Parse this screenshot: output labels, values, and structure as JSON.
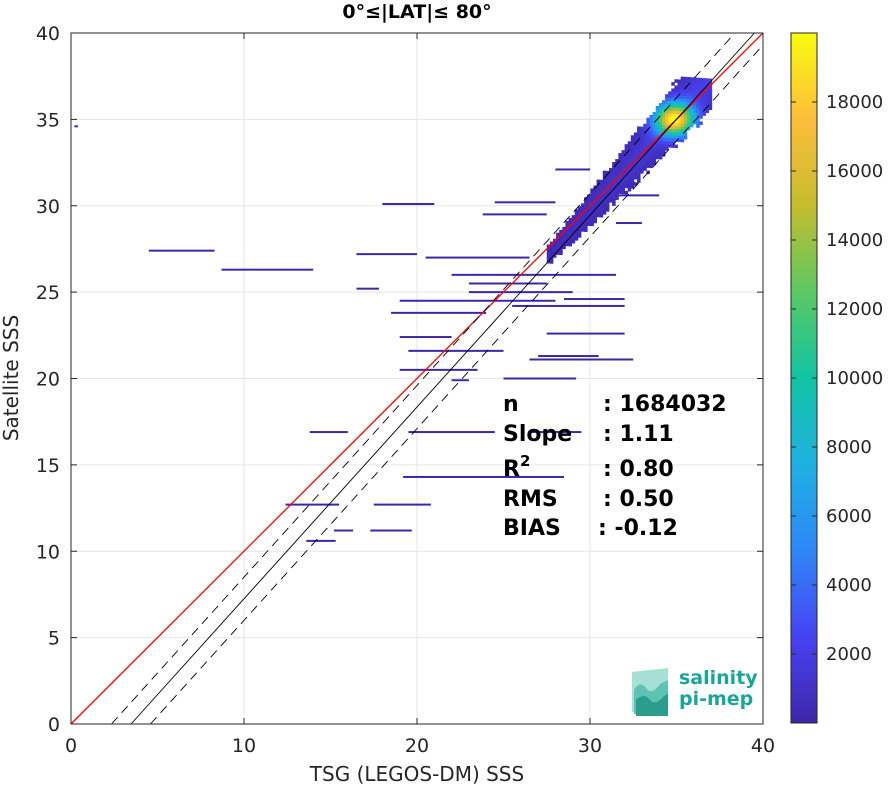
{
  "chart_data": {
    "type": "heatmap",
    "title": "0°≤|LAT|≤ 80°",
    "xlabel": "TSG (LEGOS-DM) SSS",
    "ylabel": "Satellite SSS",
    "xlim": [
      0,
      40
    ],
    "ylim": [
      0,
      40
    ],
    "x_ticks": [
      "0",
      "10",
      "20",
      "30",
      "40"
    ],
    "y_ticks": [
      "0",
      "5",
      "10",
      "15",
      "20",
      "25",
      "30",
      "35",
      "40"
    ],
    "grid": true,
    "colorbar": {
      "range": [
        0,
        20000
      ],
      "ticks": [
        "2000",
        "4000",
        "6000",
        "8000",
        "10000",
        "12000",
        "14000",
        "16000",
        "18000"
      ],
      "colormap": [
        "#3e26a8",
        "#4743f2",
        "#2e87f7",
        "#1fb0e1",
        "#11c3a2",
        "#5cc863",
        "#c5bd2e",
        "#fdbd3c",
        "#f9fb0e"
      ]
    },
    "lines": [
      {
        "name": "identity",
        "slope": 1.0,
        "intercept": 0.0,
        "color": "#ff0000",
        "style": "solid"
      },
      {
        "name": "fit",
        "slope": 1.11,
        "intercept": -3.85,
        "color": "#000000",
        "style": "solid"
      },
      {
        "name": "fit-plus",
        "slope": 1.11,
        "intercept": -2.6,
        "color": "#000000",
        "style": "dashed"
      },
      {
        "name": "fit-minus",
        "slope": 1.11,
        "intercept": -5.1,
        "color": "#000000",
        "style": "dashed"
      }
    ],
    "stats": [
      {
        "label": "n",
        "value": ": 1684032"
      },
      {
        "label": "Slope",
        "value": ": 1.11"
      },
      {
        "label": "R",
        "sup": "2",
        "value": ": 0.80"
      },
      {
        "label": "RMS",
        "value": ": 0.50"
      },
      {
        "label": "BIAS",
        "value": ": -0.12"
      }
    ],
    "horizontal_streaks": [
      {
        "y": 34.6,
        "x0": 0.2,
        "x1": 0.4
      },
      {
        "y": 30.1,
        "x0": 18.0,
        "x1": 21.0
      },
      {
        "y": 30.2,
        "x0": 24.5,
        "x1": 28.0
      },
      {
        "y": 29.5,
        "x0": 23.8,
        "x1": 27.5
      },
      {
        "y": 27.4,
        "x0": 4.5,
        "x1": 8.3
      },
      {
        "y": 26.3,
        "x0": 8.7,
        "x1": 14.0
      },
      {
        "y": 27.2,
        "x0": 16.5,
        "x1": 20.0
      },
      {
        "y": 27.0,
        "x0": 20.5,
        "x1": 26.5
      },
      {
        "y": 26.0,
        "x0": 22.0,
        "x1": 31.5
      },
      {
        "y": 25.5,
        "x0": 23.0,
        "x1": 27.5
      },
      {
        "y": 25.0,
        "x0": 23.0,
        "x1": 29.0
      },
      {
        "y": 25.2,
        "x0": 16.5,
        "x1": 17.8
      },
      {
        "y": 24.5,
        "x0": 19.0,
        "x1": 28.0
      },
      {
        "y": 24.2,
        "x0": 25.5,
        "x1": 32.0
      },
      {
        "y": 24.6,
        "x0": 28.5,
        "x1": 32.0
      },
      {
        "y": 23.8,
        "x0": 18.5,
        "x1": 24.0
      },
      {
        "y": 22.4,
        "x0": 19.0,
        "x1": 22.0
      },
      {
        "y": 22.6,
        "x0": 27.5,
        "x1": 32.0
      },
      {
        "y": 21.6,
        "x0": 19.5,
        "x1": 25.0
      },
      {
        "y": 21.3,
        "x0": 27.0,
        "x1": 30.5
      },
      {
        "y": 21.1,
        "x0": 26.5,
        "x1": 32.5
      },
      {
        "y": 20.5,
        "x0": 19.0,
        "x1": 23.5
      },
      {
        "y": 20.0,
        "x0": 25.0,
        "x1": 29.2
      },
      {
        "y": 19.9,
        "x0": 22.0,
        "x1": 23.0
      },
      {
        "y": 16.9,
        "x0": 13.8,
        "x1": 16.0
      },
      {
        "y": 16.9,
        "x0": 19.5,
        "x1": 24.5
      },
      {
        "y": 16.9,
        "x0": 26.5,
        "x1": 29.5
      },
      {
        "y": 14.3,
        "x0": 19.2,
        "x1": 28.5
      },
      {
        "y": 12.7,
        "x0": 12.4,
        "x1": 15.5
      },
      {
        "y": 12.7,
        "x0": 17.5,
        "x1": 20.8
      },
      {
        "y": 11.2,
        "x0": 15.2,
        "x1": 16.3
      },
      {
        "y": 11.2,
        "x0": 17.3,
        "x1": 19.7
      },
      {
        "y": 10.6,
        "x0": 13.6,
        "x1": 15.3
      },
      {
        "y": 32.1,
        "x0": 28.0,
        "x1": 30.0
      },
      {
        "y": 29.0,
        "x0": 31.5,
        "x1": 33.0
      },
      {
        "y": 30.6,
        "x0": 31.0,
        "x1": 34.0
      }
    ],
    "density_band": {
      "x0": 27.5,
      "x1": 37.0,
      "peak_x": 34.8,
      "peak_y": 34.9,
      "peak_count": 19500
    },
    "logo": {
      "line1": "salinity",
      "line2": "pi-mep"
    }
  }
}
